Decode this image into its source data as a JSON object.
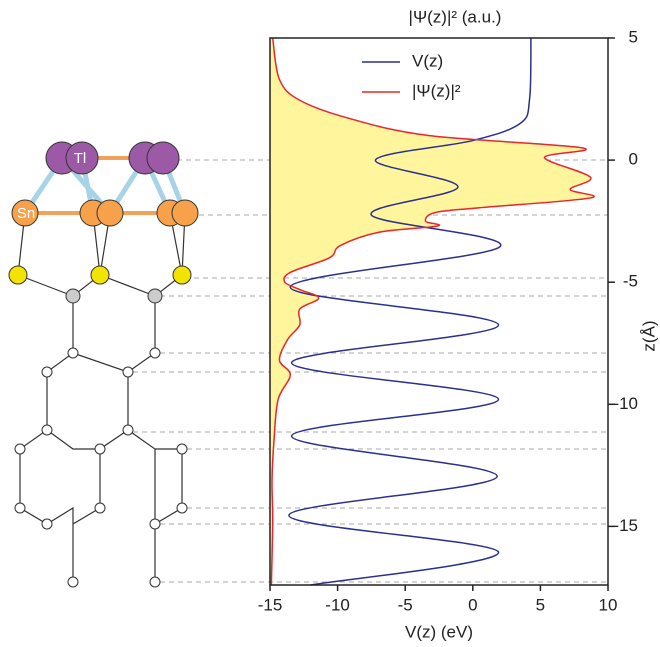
{
  "chart_data": {
    "type": "line",
    "top_axis_label": "|Ψ(z)|² (a.u.)",
    "xlabel": "V(z) (eV)",
    "ylabel": "z(Å)",
    "xlim": [
      -15,
      10
    ],
    "ylim": [
      -17.4,
      5
    ],
    "xticks": [
      -15,
      -10,
      -5,
      0,
      5,
      10
    ],
    "yticks": [
      5,
      0,
      -5,
      -10,
      -15
    ],
    "legend": "top",
    "fill_color": "#fff59d",
    "atom_labels": [
      "Tl",
      "Sn"
    ],
    "series": [
      {
        "name": "V(z)",
        "color": "#2b2f8f",
        "z": [
          5,
          2.5,
          1.5,
          0.8,
          0,
          -1.1,
          -2.25,
          -3.55,
          -5.2,
          -6.75,
          -8.3,
          -9.8,
          -11.3,
          -12.95,
          -14.55,
          -16.05,
          -17.4
        ],
        "values": [
          4.3,
          4.2,
          3.5,
          0,
          -7.2,
          -1.1,
          -7.5,
          2.0,
          -13.5,
          1.9,
          -13.4,
          1.9,
          -13.4,
          1.8,
          -13.6,
          1.9,
          -12
        ]
      },
      {
        "name": "|Ψ(z)|²",
        "color": "#e8262b",
        "fill": true,
        "z": [
          5,
          3.3,
          2.45,
          1.7,
          1.0,
          0.5,
          0.1,
          -0.7,
          -1.2,
          -1.55,
          -1.95,
          -2.15,
          -2.5,
          -2.7,
          -2.95,
          -3.5,
          -4.0,
          -4.6,
          -5.0,
          -5.3,
          -5.65,
          -6.1,
          -6.75,
          -7.35,
          -8.2,
          -8.8,
          -9.8,
          -11.45,
          -13.1,
          -14.8,
          -17.4
        ],
        "values": [
          -14.8,
          -14.3,
          -12.8,
          -9.1,
          -3.2,
          8.1,
          5.3,
          8.7,
          7.2,
          8.7,
          0.5,
          -2.8,
          -3.5,
          -2.6,
          -6.9,
          -9.8,
          -10.6,
          -13.5,
          -13.9,
          -12.8,
          -11.4,
          -12.8,
          -12.8,
          -13.7,
          -14.3,
          -13.5,
          -14.4,
          -14.7,
          -14.85,
          -14.8,
          -14.9
        ]
      }
    ]
  }
}
